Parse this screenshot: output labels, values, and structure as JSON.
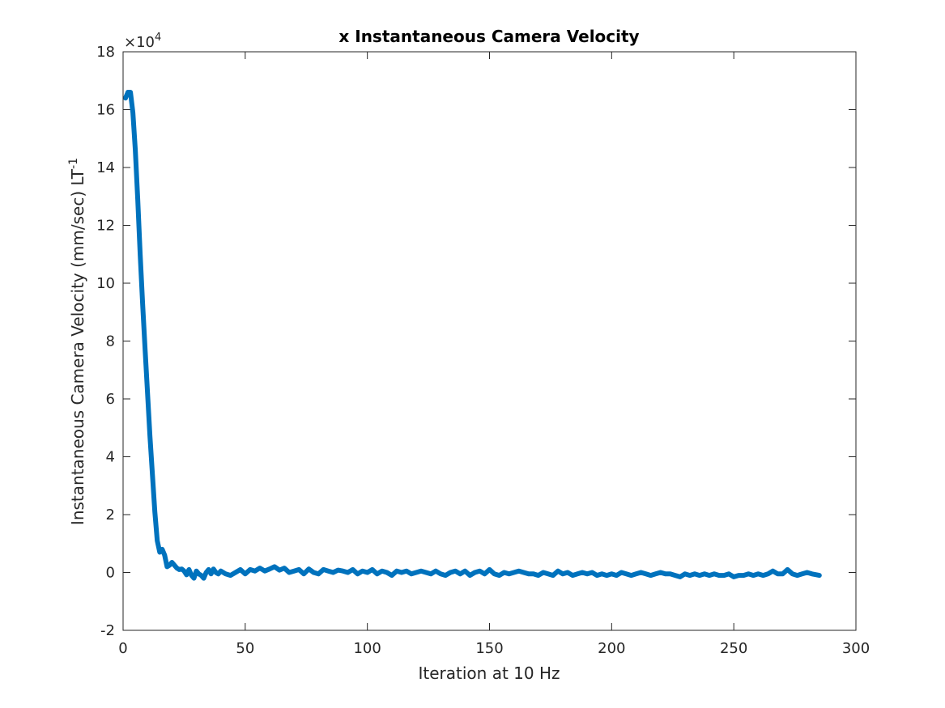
{
  "chart_data": {
    "type": "line",
    "title": "x Instantaneous Camera Velocity",
    "xlabel": "Iteration at 10 Hz",
    "ylabel": "Instantaneous Camera Velocity (mm/sec) LT",
    "ylabel_superscript": "-1",
    "y_exponent_base": "×10",
    "y_exponent_power": "4",
    "xlim": [
      0,
      300
    ],
    "ylim": [
      -2,
      18
    ],
    "xticks": [
      "0",
      "50",
      "100",
      "150",
      "200",
      "250",
      "300"
    ],
    "yticks": [
      "-2",
      "0",
      "2",
      "4",
      "6",
      "8",
      "10",
      "12",
      "14",
      "16",
      "18"
    ],
    "grid": false,
    "line_color": "#0072BD",
    "series": [
      {
        "x": [
          1,
          2,
          3,
          4,
          5,
          6,
          7,
          8,
          9,
          10,
          11,
          12,
          13,
          14,
          15,
          16,
          17,
          18,
          19,
          20,
          21,
          22,
          23,
          24,
          25,
          26,
          27,
          28,
          29,
          30,
          31,
          32,
          33,
          34,
          35,
          36,
          37,
          38,
          39,
          40,
          42,
          44,
          46,
          48,
          50,
          52,
          54,
          56,
          58,
          60,
          62,
          64,
          66,
          68,
          70,
          72,
          74,
          76,
          78,
          80,
          82,
          84,
          86,
          88,
          90,
          92,
          94,
          96,
          98,
          100,
          102,
          104,
          106,
          108,
          110,
          112,
          114,
          116,
          118,
          120,
          122,
          124,
          126,
          128,
          130,
          132,
          134,
          136,
          138,
          140,
          142,
          144,
          146,
          148,
          150,
          152,
          154,
          156,
          158,
          160,
          162,
          164,
          166,
          168,
          170,
          172,
          174,
          176,
          178,
          180,
          182,
          184,
          186,
          188,
          190,
          192,
          194,
          196,
          198,
          200,
          202,
          204,
          206,
          208,
          210,
          212,
          214,
          216,
          218,
          220,
          222,
          224,
          226,
          228,
          230,
          232,
          234,
          236,
          238,
          240,
          242,
          244,
          246,
          248,
          250,
          252,
          254,
          256,
          258,
          260,
          262,
          264,
          266,
          268,
          270,
          272,
          274,
          276,
          278,
          280,
          282,
          284,
          285
        ],
        "y": [
          16.4,
          16.6,
          16.6,
          15.9,
          14.6,
          12.9,
          11.0,
          9.3,
          7.7,
          6.2,
          4.7,
          3.4,
          2.1,
          1.1,
          0.7,
          0.8,
          0.6,
          0.2,
          0.25,
          0.35,
          0.25,
          0.15,
          0.1,
          0.12,
          0.05,
          -0.08,
          0.1,
          -0.1,
          -0.2,
          0.05,
          -0.05,
          -0.1,
          -0.2,
          0.0,
          0.1,
          -0.05,
          0.12,
          0.0,
          -0.05,
          0.05,
          -0.05,
          -0.1,
          0.0,
          0.1,
          -0.05,
          0.1,
          0.05,
          0.15,
          0.05,
          0.12,
          0.2,
          0.08,
          0.15,
          0.0,
          0.05,
          0.1,
          -0.05,
          0.12,
          0.0,
          -0.05,
          0.1,
          0.05,
          0.0,
          0.08,
          0.05,
          0.0,
          0.1,
          -0.05,
          0.05,
          0.0,
          0.1,
          -0.05,
          0.05,
          0.0,
          -0.1,
          0.05,
          0.0,
          0.05,
          -0.05,
          0.0,
          0.05,
          0.0,
          -0.05,
          0.05,
          -0.05,
          -0.1,
          0.0,
          0.05,
          -0.05,
          0.05,
          -0.1,
          0.0,
          0.05,
          -0.05,
          0.1,
          -0.05,
          -0.1,
          0.0,
          -0.05,
          0.0,
          0.05,
          0.0,
          -0.05,
          -0.05,
          -0.1,
          0.0,
          -0.05,
          -0.1,
          0.05,
          -0.05,
          0.0,
          -0.1,
          -0.05,
          0.0,
          -0.05,
          0.0,
          -0.1,
          -0.05,
          -0.1,
          -0.05,
          -0.1,
          0.0,
          -0.05,
          -0.1,
          -0.05,
          0.0,
          -0.05,
          -0.1,
          -0.05,
          0.0,
          -0.05,
          -0.05,
          -0.1,
          -0.15,
          -0.05,
          -0.1,
          -0.05,
          -0.1,
          -0.05,
          -0.1,
          -0.05,
          -0.1,
          -0.1,
          -0.05,
          -0.15,
          -0.1,
          -0.1,
          -0.05,
          -0.1,
          -0.05,
          -0.1,
          -0.05,
          0.05,
          -0.05,
          -0.05,
          0.1,
          -0.05,
          -0.1,
          -0.05,
          0.0,
          -0.05,
          -0.08,
          -0.1
        ]
      }
    ]
  }
}
